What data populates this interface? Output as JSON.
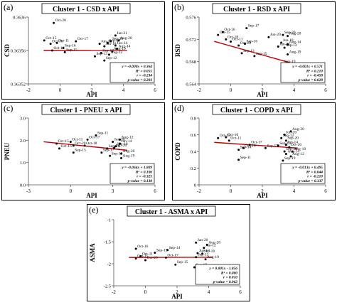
{
  "chart_data": [
    {
      "type": "scatter",
      "panel_label": "(a)",
      "title": "Cluster 1 - CSD x API",
      "xlabel": "API",
      "ylabel": "CSD",
      "xlim": [
        -2,
        6
      ],
      "ylim": [
        0.36352,
        0.3636
      ],
      "x_ticks": [
        -2,
        0,
        2,
        4,
        6
      ],
      "y_ticks": [
        0.36352,
        0.36356,
        0.3636
      ],
      "y_tick_labels": [
        "0.36352",
        "0.36356",
        "0.3636"
      ],
      "regression": {
        "slope": -1e-08,
        "intercept": 0.36356
      },
      "stats_box": [
        "y = -0.000x + 0.364",
        "R² = 0.055",
        "r = -0.234",
        "p-value = 0.283"
      ],
      "points": [
        {
          "label": "Oct-20",
          "x": -0.4,
          "y": 0.363593
        },
        {
          "label": "Jan-21",
          "x": 3.5,
          "y": 0.363578
        },
        {
          "label": "Oct-15",
          "x": -1.0,
          "y": 0.363572
        },
        {
          "label": "Oct-16",
          "x": -0.6,
          "y": 0.363568
        },
        {
          "label": "Oct-11",
          "x": -0.2,
          "y": 0.363569
        },
        {
          "label": "Oct-17",
          "x": 1.0,
          "y": 0.363571
        },
        {
          "label": "Sep-20",
          "x": 3.2,
          "y": 0.363571
        },
        {
          "label": "Aug-20",
          "x": 3.7,
          "y": 0.363572
        },
        {
          "label": "Sep-14",
          "x": 3.0,
          "y": 0.363569
        },
        {
          "label": "Jun-20",
          "x": 2.5,
          "y": 0.363568
        },
        {
          "label": "Jun-14",
          "x": 3.5,
          "y": 0.363566
        },
        {
          "label": "Jan-18",
          "x": 2.8,
          "y": 0.363565
        },
        {
          "label": "Sep-16",
          "x": 0.2,
          "y": 0.363563
        },
        {
          "label": "Oct-18",
          "x": -0.5,
          "y": 0.36356
        },
        {
          "label": "Aug-14",
          "x": 3.6,
          "y": 0.363562
        },
        {
          "label": "Aug-19",
          "x": 3.3,
          "y": 0.363559
        },
        {
          "label": "Sep-15",
          "x": 0.3,
          "y": 0.363558
        },
        {
          "label": "Sep-17",
          "x": 2.6,
          "y": 0.363557
        },
        {
          "label": "Aug-12",
          "x": 3.1,
          "y": 0.363555
        },
        {
          "label": "Sep-13",
          "x": 2.2,
          "y": 0.363553
        },
        {
          "label": "Sep-12",
          "x": 2.8,
          "y": 0.363548
        }
      ]
    },
    {
      "type": "scatter",
      "panel_label": "(b)",
      "title": "Cluster 1 - RSD x API",
      "xlabel": "API",
      "ylabel": "RSD",
      "xlim": [
        -2,
        6
      ],
      "ylim": [
        0.564,
        0.576
      ],
      "x_ticks": [
        -2,
        0,
        2,
        4,
        6
      ],
      "y_ticks": [
        0.564,
        0.568,
        0.572,
        0.576
      ],
      "y_tick_labels": [
        "0.564",
        "0.568",
        "0.572",
        "0.576"
      ],
      "regression": {
        "slope": -0.0008,
        "intercept": 0.5708
      },
      "stats_box": [
        "y = -0.001x + 0.571",
        "R² = 0.210",
        "r = -0.458",
        "p-value = 0.028"
      ],
      "points": [
        {
          "label": "Sep-17",
          "x": 1.0,
          "y": 0.574
        },
        {
          "label": "Oct-16",
          "x": -0.5,
          "y": 0.5733
        },
        {
          "label": "Oct-15",
          "x": -0.8,
          "y": 0.5728
        },
        {
          "label": "Sep-20",
          "x": 3.3,
          "y": 0.5728
        },
        {
          "label": "Oct-18",
          "x": -0.3,
          "y": 0.572
        },
        {
          "label": "Jun-20",
          "x": 2.4,
          "y": 0.5724
        },
        {
          "label": "Aug-20",
          "x": 3.6,
          "y": 0.5726
        },
        {
          "label": "Oct-11",
          "x": 0.0,
          "y": 0.5716
        },
        {
          "label": "Jun-18",
          "x": 3.2,
          "y": 0.5714
        },
        {
          "label": "Aug-14",
          "x": 3.6,
          "y": 0.5711
        },
        {
          "label": "Oct-20",
          "x": 0.5,
          "y": 0.5709
        },
        {
          "label": "Sep-16",
          "x": 0.9,
          "y": 0.5712
        },
        {
          "label": "Jan-21",
          "x": 3.0,
          "y": 0.5707
        },
        {
          "label": "Sep-12",
          "x": 3.4,
          "y": 0.5705
        },
        {
          "label": "Sep-13",
          "x": 0.7,
          "y": 0.5695
        },
        {
          "label": "Sep-15",
          "x": 1.5,
          "y": 0.569
        },
        {
          "label": "Aug-19",
          "x": 3.6,
          "y": 0.5693
        },
        {
          "label": "Sep-19",
          "x": 3.3,
          "y": 0.5676
        },
        {
          "label": "Aug-12",
          "x": 3.5,
          "y": 0.565
        }
      ]
    },
    {
      "type": "scatter",
      "panel_label": "(c)",
      "title": "Cluster 1 - PNEU x API",
      "xlabel": "API",
      "ylabel": "PNEU",
      "xlim": [
        -3,
        6
      ],
      "ylim": [
        0.0,
        3.0
      ],
      "x_ticks": [
        -3,
        0,
        3,
        6
      ],
      "y_ticks": [
        0.0,
        1.0,
        2.0,
        3.0
      ],
      "y_tick_labels": [
        "0.0",
        "1.0",
        "2.0",
        "3.0"
      ],
      "regression": {
        "slope": -0.064,
        "intercept": 1.809
      },
      "stats_box": [
        "y = -0.064x + 1.809",
        "R² = 0.106",
        "r = -0.325",
        "p-value = 0.130"
      ],
      "points": [
        {
          "label": "Sep-11",
          "x": 1.8,
          "y": 2.22
        },
        {
          "label": "Oct-17",
          "x": 1.2,
          "y": 2.03
        },
        {
          "label": "Aug-12",
          "x": 3.5,
          "y": 2.03
        },
        {
          "label": "Oct-11",
          "x": 0.0,
          "y": 1.93
        },
        {
          "label": "Jun-20",
          "x": 3.0,
          "y": 1.93
        },
        {
          "label": "Oct-15",
          "x": -1.0,
          "y": 1.85
        },
        {
          "label": "Jan-14",
          "x": 3.5,
          "y": 1.85
        },
        {
          "label": "Oct-20",
          "x": 0.2,
          "y": 1.76
        },
        {
          "label": "Oct-18",
          "x": 1.0,
          "y": 1.76
        },
        {
          "label": "Jun-18",
          "x": 3.2,
          "y": 1.73
        },
        {
          "label": "Oct-16",
          "x": -0.8,
          "y": 1.63
        },
        {
          "label": "Sep-13",
          "x": 2.6,
          "y": 1.63
        },
        {
          "label": "Sep-20",
          "x": 3.1,
          "y": 1.66
        },
        {
          "label": "Sep-15",
          "x": 0.2,
          "y": 1.45
        },
        {
          "label": "Sep-17",
          "x": 2.2,
          "y": 1.45
        },
        {
          "label": "Sep-12",
          "x": 2.8,
          "y": 1.3
        },
        {
          "label": "Aug-20",
          "x": 3.6,
          "y": 1.4
        },
        {
          "label": "Aug-19",
          "x": 3.6,
          "y": 1.2
        }
      ]
    },
    {
      "type": "scatter",
      "panel_label": "(d)",
      "title": "Cluster 1 - COPD x API",
      "xlabel": "API",
      "ylabel": "COPD",
      "xlim": [
        -2,
        6
      ],
      "ylim": [
        0.0,
        0.8
      ],
      "x_ticks": [
        -2,
        0,
        2,
        4,
        6
      ],
      "y_ticks": [
        0.0,
        0.2,
        0.4,
        0.6,
        0.8
      ],
      "y_tick_labels": [
        "0",
        "0.2",
        "0.4",
        "0.6",
        "0.8"
      ],
      "regression": {
        "slope": -0.013,
        "intercept": 0.495
      },
      "stats_box": [
        "y = -0.013x + 0.495",
        "R² = 0.044",
        "r = -0.210",
        "p-value = 0.337"
      ],
      "points": [
        {
          "label": "Aug-20",
          "x": 3.8,
          "y": 0.64
        },
        {
          "label": "Jun-20",
          "x": 3.4,
          "y": 0.6
        },
        {
          "label": "Oct-15",
          "x": -0.8,
          "y": 0.56
        },
        {
          "label": "Oct-16",
          "x": -0.3,
          "y": 0.57
        },
        {
          "label": "Sep-12",
          "x": 3.2,
          "y": 0.56
        },
        {
          "label": "Oct-11",
          "x": -0.1,
          "y": 0.53
        },
        {
          "label": "Sep-20",
          "x": 3.5,
          "y": 0.53
        },
        {
          "label": "Oct-17",
          "x": 1.2,
          "y": 0.48
        },
        {
          "label": "Sep-13",
          "x": 3.0,
          "y": 0.47
        },
        {
          "label": "Jan-14",
          "x": 3.5,
          "y": 0.48
        },
        {
          "label": "Sep-17",
          "x": 2.2,
          "y": 0.44
        },
        {
          "label": "Oct-18",
          "x": 0.8,
          "y": 0.44
        },
        {
          "label": "Oct-20",
          "x": 3.7,
          "y": 0.45
        },
        {
          "label": "Sep-14",
          "x": 0.5,
          "y": 0.42
        },
        {
          "label": "Sep-16",
          "x": 3.4,
          "y": 0.4
        },
        {
          "label": "Aug-19",
          "x": 3.9,
          "y": 0.4
        },
        {
          "label": "Aug-14",
          "x": 3.5,
          "y": 0.37
        },
        {
          "label": "Aug-12",
          "x": 3.8,
          "y": 0.34
        },
        {
          "label": "Sep-11",
          "x": 0.5,
          "y": 0.3
        },
        {
          "label": "Sep-19",
          "x": 3.3,
          "y": 0.29
        }
      ]
    },
    {
      "type": "scatter",
      "panel_label": "(e)",
      "title": "Cluster 1 - ASMA x API",
      "xlabel": "API",
      "ylabel": "ASMA",
      "xlim": [
        -2,
        6
      ],
      "ylim": [
        -2.5,
        -1.0
      ],
      "x_ticks": [
        -2,
        0,
        2,
        4,
        6
      ],
      "y_ticks": [
        -2.5,
        -2.0,
        -1.5,
        -1.0
      ],
      "y_tick_labels": [
        "-2.5",
        "-2",
        "-1.5",
        "-1"
      ],
      "regression": {
        "slope": 0.001,
        "intercept": -1.856
      },
      "stats_box": [
        "y = 0.001x - 1.856",
        "R² = 0.000",
        "r = 0.010",
        "p-value = 0.962"
      ],
      "points": [
        {
          "label": "Jan-20",
          "x": 3.2,
          "y": -1.52
        },
        {
          "label": "Aug-20",
          "x": 3.9,
          "y": -1.57
        },
        {
          "label": "Jun-12",
          "x": 3.7,
          "y": -1.64
        },
        {
          "label": "Oct-16",
          "x": -0.6,
          "y": -1.66
        },
        {
          "label": "Sep-14",
          "x": 1.4,
          "y": -1.69
        },
        {
          "label": "Sep-15",
          "x": 0.6,
          "y": -1.75
        },
        {
          "label": "Jun-18",
          "x": 3.3,
          "y": -1.76
        },
        {
          "label": "Sep-16",
          "x": 3.6,
          "y": -1.77
        },
        {
          "label": "Oct-11",
          "x": -0.3,
          "y": -1.83
        },
        {
          "label": "Oct-17",
          "x": 1.3,
          "y": -1.86
        },
        {
          "label": "Oct-15",
          "x": -0.6,
          "y": -1.88
        },
        {
          "label": "Oct-20",
          "x": 0.0,
          "y": -1.92
        },
        {
          "label": "Sep-13",
          "x": 3.2,
          "y": -1.85
        },
        {
          "label": "Aug-19",
          "x": 3.8,
          "y": -1.9
        },
        {
          "label": "Sep-15",
          "x": 1.9,
          "y": -2.02
        },
        {
          "label": "Sep-17",
          "x": 3.1,
          "y": -2.08
        },
        {
          "label": "Aug-12",
          "x": 3.6,
          "y": -2.1
        }
      ]
    }
  ]
}
